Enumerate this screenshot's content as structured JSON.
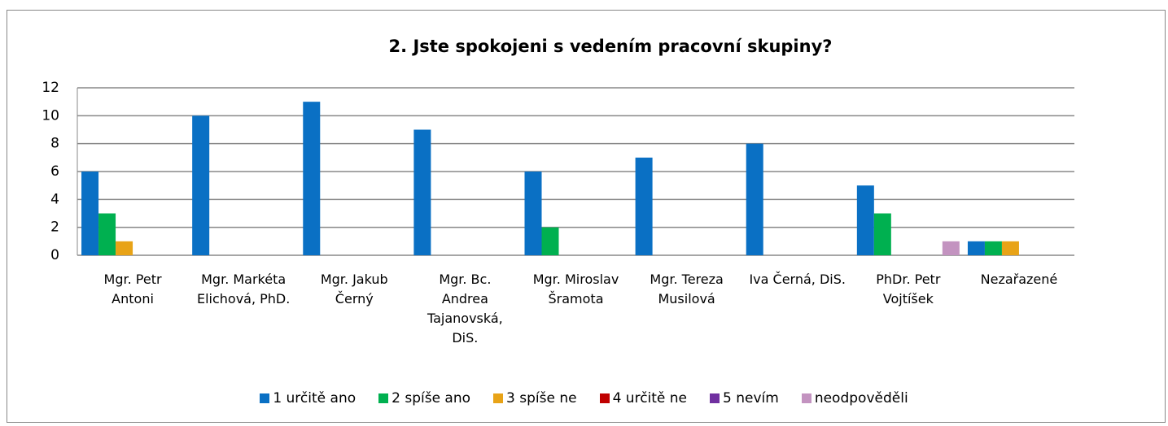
{
  "chart_data": {
    "type": "bar",
    "title": "2. Jste spokojeni s vedením pracovní skupiny?",
    "categories": [
      "Mgr. Petr Antoni",
      "Mgr. Markéta Elichová, PhD.",
      "Mgr. Jakub Černý",
      "Mgr. Bc. Andrea Tajanovská, DiS.",
      "Mgr. Miroslav Šramota",
      "Mgr. Tereza Musilová",
      "Iva Černá, DiS.",
      "PhDr. Petr Vojtíšek",
      "Nezařazené"
    ],
    "series": [
      {
        "name": "1 určitě ano",
        "color": "#0a70c4",
        "values": [
          6,
          10,
          11,
          9,
          6,
          7,
          8,
          5,
          1
        ]
      },
      {
        "name": "2 spíše ano",
        "color": "#00b050",
        "values": [
          3,
          0,
          0,
          0,
          2,
          0,
          0,
          3,
          1
        ]
      },
      {
        "name": "3 spíše ne",
        "color": "#e8a317",
        "values": [
          1,
          0,
          0,
          0,
          0,
          0,
          0,
          0,
          1
        ]
      },
      {
        "name": "4 určitě ne",
        "color": "#c00000",
        "values": [
          0,
          0,
          0,
          0,
          0,
          0,
          0,
          0,
          0
        ]
      },
      {
        "name": "5 nevím",
        "color": "#7030a0",
        "values": [
          0,
          0,
          0,
          0,
          0,
          0,
          0,
          0,
          0
        ]
      },
      {
        "name": "neodpověděli",
        "color": "#c393c0",
        "values": [
          0,
          0,
          0,
          0,
          0,
          0,
          0,
          1,
          0
        ]
      }
    ],
    "ylim": [
      0,
      12
    ],
    "yticks": [
      0,
      2,
      4,
      6,
      8,
      10,
      12
    ],
    "grid": true,
    "legend": "bottom"
  }
}
